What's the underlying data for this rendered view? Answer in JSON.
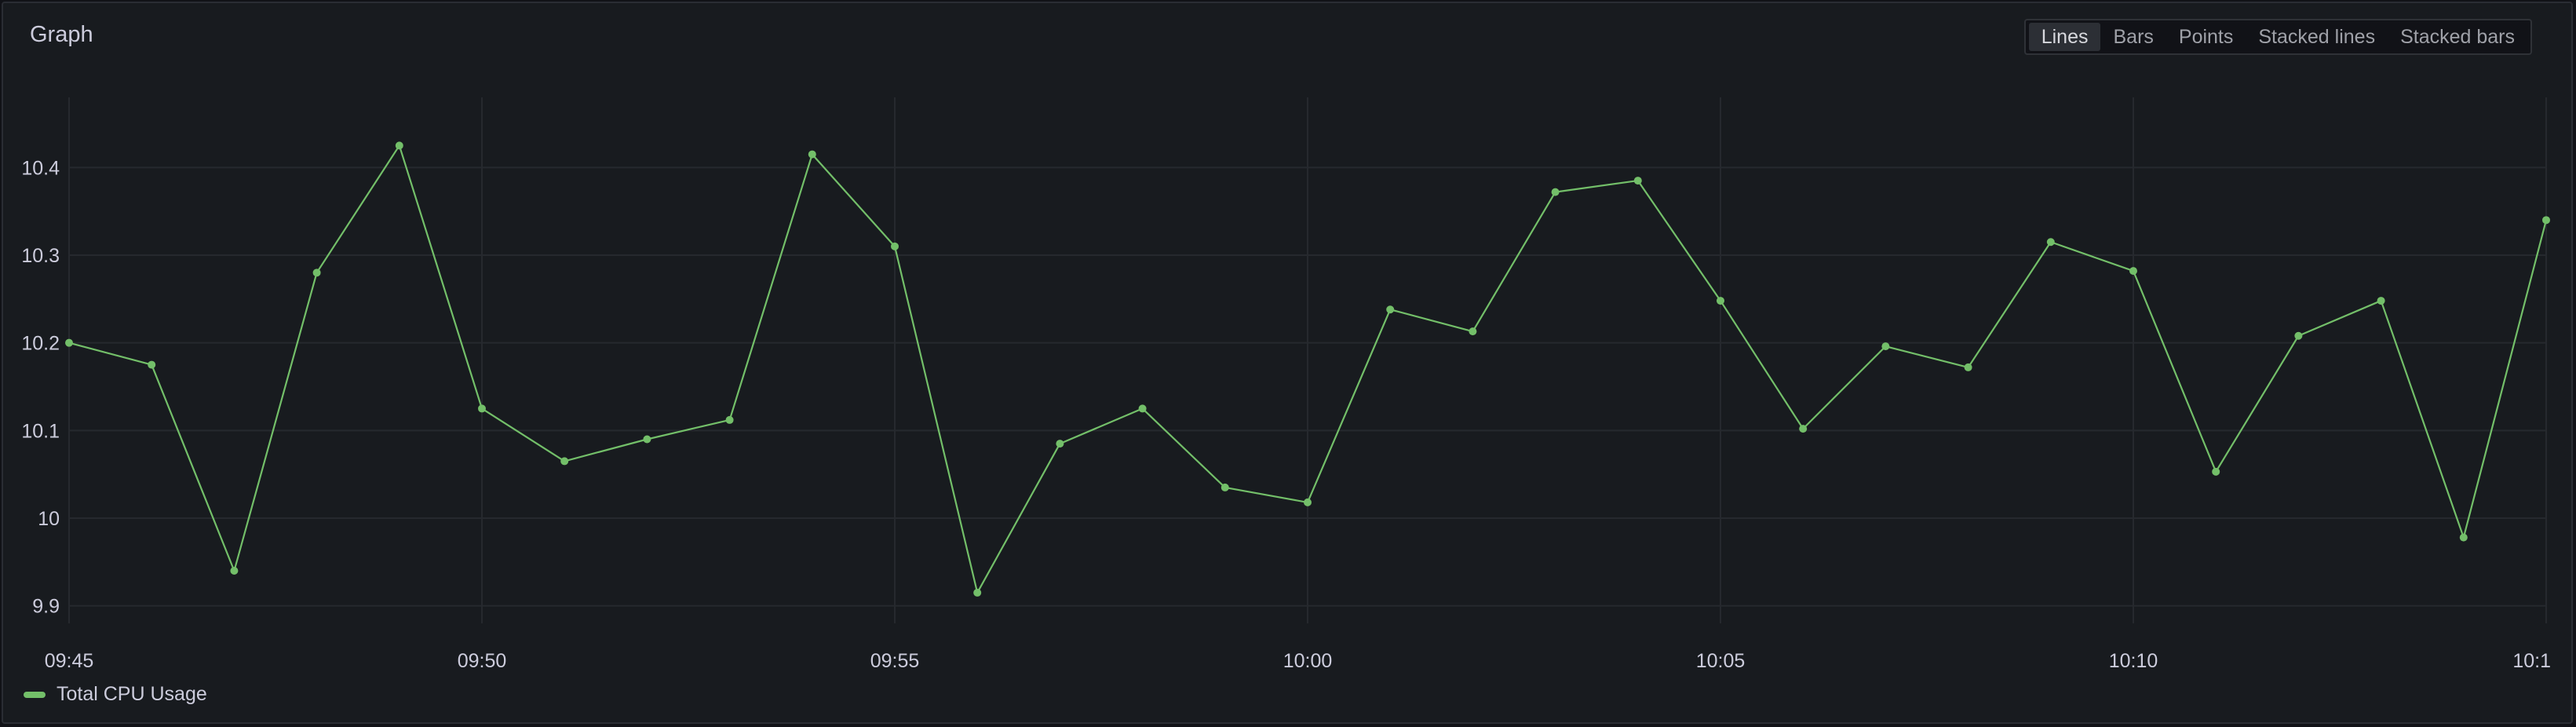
{
  "panel": {
    "title": "Graph"
  },
  "view_toggle": {
    "options": [
      "Lines",
      "Bars",
      "Points",
      "Stacked lines",
      "Stacked bars"
    ],
    "selected": "Lines"
  },
  "colors": {
    "series": "#73bf69",
    "grid": "#26292e",
    "axis_text": "#ccccdc"
  },
  "chart_data": {
    "type": "line",
    "x_ticks": [
      "09:45",
      "09:50",
      "09:55",
      "10:00",
      "10:05",
      "10:10",
      "10:1"
    ],
    "x_range": [
      "09:45",
      "10:15"
    ],
    "y_ticks": [
      "9.9",
      "10",
      "10.1",
      "10.2",
      "10.3",
      "10.4"
    ],
    "ylim": [
      9.88,
      10.48
    ],
    "grid": true,
    "legend_position": "bottom-left",
    "series": [
      {
        "name": "Total CPU Usage",
        "x": [
          "09:45",
          "09:46",
          "09:47",
          "09:48",
          "09:49",
          "09:50",
          "09:51",
          "09:52",
          "09:53",
          "09:54",
          "09:55",
          "09:56",
          "09:57",
          "09:58",
          "09:59",
          "10:00",
          "10:01",
          "10:02",
          "10:03",
          "10:04",
          "10:05",
          "10:06",
          "10:07",
          "10:08",
          "10:09",
          "10:10",
          "10:11",
          "10:12",
          "10:13",
          "10:14",
          "10:15"
        ],
        "values": [
          10.2,
          10.175,
          9.94,
          10.28,
          10.425,
          10.125,
          10.065,
          10.09,
          10.112,
          10.415,
          10.31,
          9.915,
          10.085,
          10.125,
          10.035,
          10.018,
          10.238,
          10.213,
          10.372,
          10.385,
          10.248,
          10.102,
          10.196,
          10.172,
          10.315,
          10.282,
          10.053,
          10.208,
          10.248,
          9.978,
          10.34
        ]
      }
    ]
  }
}
